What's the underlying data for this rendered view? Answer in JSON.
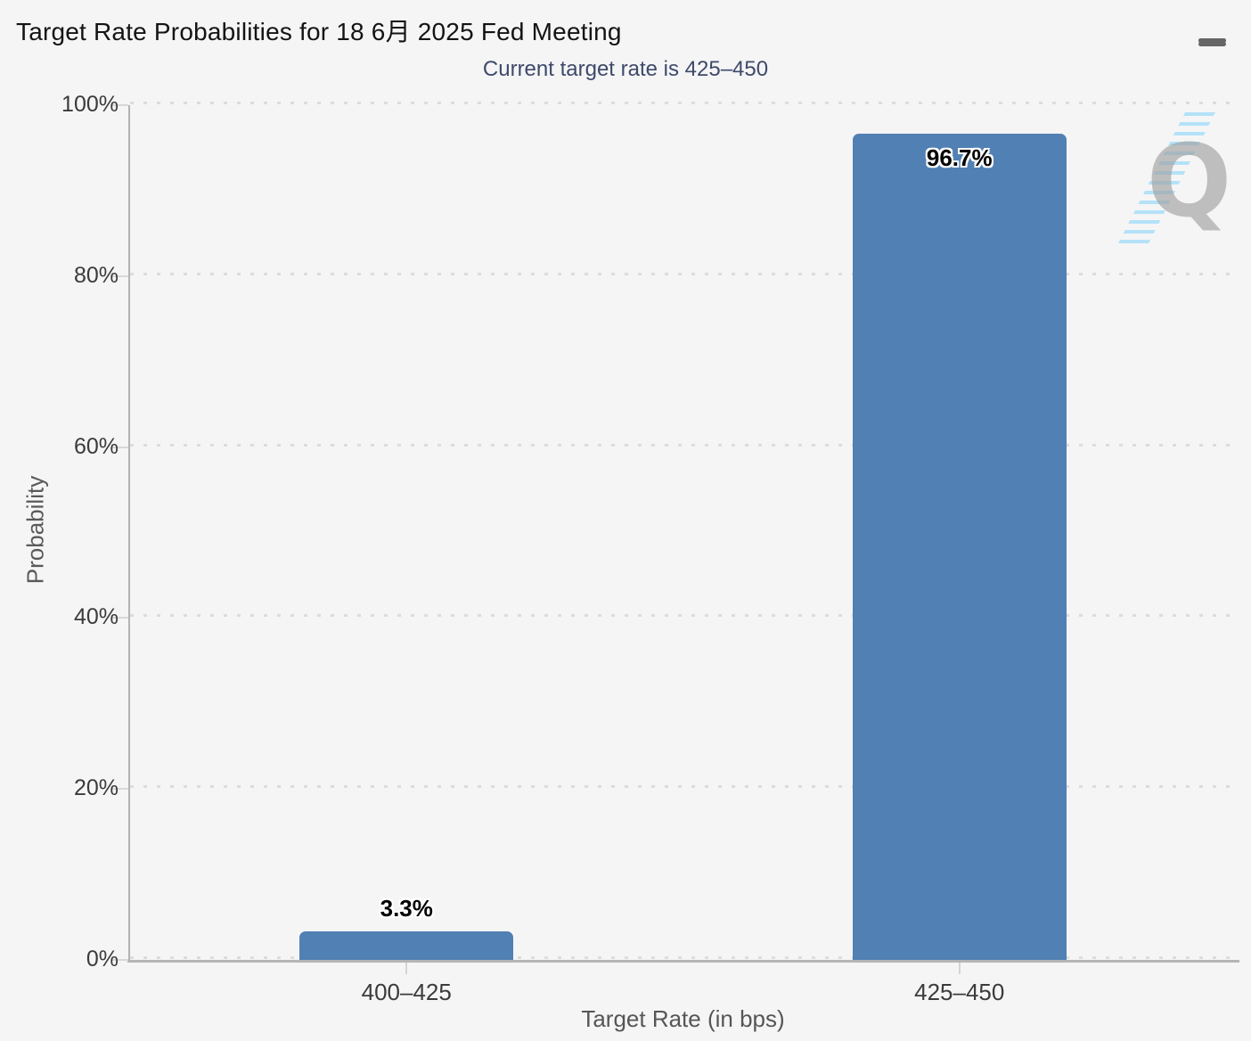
{
  "header": {
    "menu_icon": "hamburger-menu-icon"
  },
  "watermark": {
    "letter": "Q"
  },
  "chart_data": {
    "type": "bar",
    "title": "Target Rate Probabilities for 18 6月 2025 Fed Meeting",
    "subtitle": "Current target rate is 425–450",
    "categories": [
      "400–425",
      "425–450"
    ],
    "values": [
      3.3,
      96.7
    ],
    "value_labels": [
      "3.3%",
      "96.7%"
    ],
    "xlabel": "Target Rate (in bps)",
    "ylabel": "Probability",
    "ylim": [
      0,
      100
    ],
    "ytick_step": 20,
    "ytick_labels": [
      "0%",
      "20%",
      "40%",
      "60%",
      "80%",
      "100%"
    ],
    "grid": "dotted-horizontal",
    "legend": false,
    "bar_color": "#5180b4",
    "label_inside_threshold_note": "96.7% label rendered inside bar top, 3.3% label above bar"
  }
}
